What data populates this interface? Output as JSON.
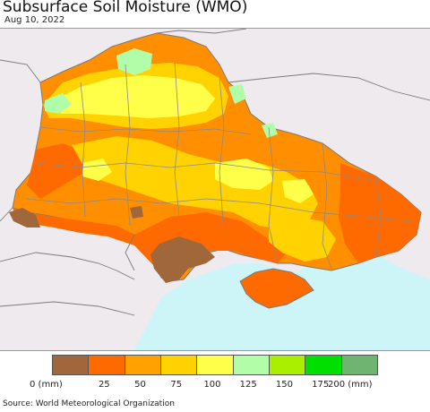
{
  "title": "Subsurface Soil Moisture (WMO)",
  "date": "Aug 10, 2022",
  "source": "Source: World Meteorological Organization",
  "legend": {
    "colors": [
      "#a0683a",
      "#ff6a00",
      "#ffa100",
      "#ffd200",
      "#ffff4a",
      "#b0ffa8",
      "#aaee00",
      "#00e000",
      "#6fb46f"
    ],
    "ticks": [
      "0 (mm)",
      "25",
      "50",
      "75",
      "100",
      "125",
      "150",
      "175",
      "200 (mm)"
    ]
  },
  "map": {
    "sea_color": "#cdf5f8",
    "neighbor_land_color": "#efeaed",
    "border_color": "#7a7a7a"
  }
}
